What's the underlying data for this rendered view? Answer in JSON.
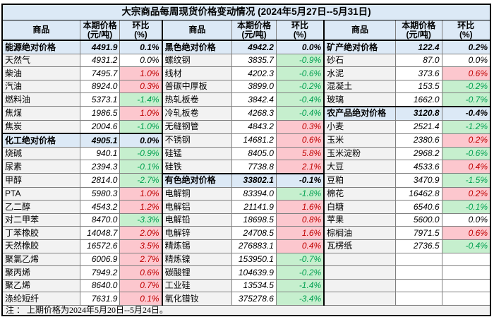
{
  "title": "大宗商品每周现货价格变动情况 (2024年5月27日--5月31日)",
  "note": "注 ： 上期价格为2024年5月20日--5月24日。",
  "header": {
    "commodity": "商品",
    "price_l1": "本期价格",
    "price_l2": "(元/吨)",
    "pct_l1": "环比",
    "pct_l2": "(%)"
  },
  "colors": {
    "header_bg": "#DCE9F6",
    "aggregate_bg": "#DCE9F6",
    "name_cell_bg": "#F2F2F2",
    "increase_bg": "#FCC7CE",
    "increase_text": "#C00000",
    "decrease_bg": "#C6EFCE",
    "decrease_text": "#00A050",
    "grid_line": "#808080",
    "outer_border": "#000000"
  },
  "groups": [
    {
      "rows": [
        {
          "name": "能源绝对价格",
          "price": "4491.9",
          "pct": "0.1%",
          "trend": "agg"
        },
        {
          "name": "天然气",
          "price": "4931.2",
          "pct": "0.0%",
          "trend": "flat"
        },
        {
          "name": "柴油",
          "price": "7495.7",
          "pct": "1.0%",
          "trend": "up"
        },
        {
          "name": "汽油",
          "price": "8924.0",
          "pct": "0.3%",
          "trend": "up"
        },
        {
          "name": "燃料油",
          "price": "5373.1",
          "pct": "-1.4%",
          "trend": "down"
        },
        {
          "name": "焦煤",
          "price": "1986.5",
          "pct": "1.0%",
          "trend": "up"
        },
        {
          "name": "焦炭",
          "price": "2004.6",
          "pct": "-1.0%",
          "trend": "down"
        },
        {
          "name": "化工绝对价格",
          "price": "4905.1",
          "pct": "0.0%",
          "trend": "agg"
        },
        {
          "name": "烧碱",
          "price": "940.1",
          "pct": "-0.9%",
          "trend": "down"
        },
        {
          "name": "尿素",
          "price": "2394.3",
          "pct": "-0.1%",
          "trend": "down"
        },
        {
          "name": "甲醇",
          "price": "2814.0",
          "pct": "-2.7%",
          "trend": "down"
        },
        {
          "name": "PTA",
          "price": "5980.3",
          "pct": "1.0%",
          "trend": "up"
        },
        {
          "name": "乙二醇",
          "price": "4543.2",
          "pct": "1.2%",
          "trend": "up"
        },
        {
          "name": "对二甲苯",
          "price": "8470.0",
          "pct": "-3.3%",
          "trend": "down"
        },
        {
          "name": "丁苯橡胶",
          "price": "14048.7",
          "pct": "2.0%",
          "trend": "up"
        },
        {
          "name": "天然橡胶",
          "price": "16572.6",
          "pct": "3.5%",
          "trend": "up"
        },
        {
          "name": "聚氯乙烯",
          "price": "6006.9",
          "pct": "2.7%",
          "trend": "up"
        },
        {
          "name": "聚丙烯",
          "price": "7949.2",
          "pct": "0.6%",
          "trend": "up"
        },
        {
          "name": "聚乙烯",
          "price": "8640.0",
          "pct": "0.7%",
          "trend": "up"
        },
        {
          "name": "涤纶短纤",
          "price": "7631.9",
          "pct": "0.1%",
          "trend": "up"
        }
      ]
    },
    {
      "rows": [
        {
          "name": "黑色绝对价格",
          "price": "4942.2",
          "pct": "0.0%",
          "trend": "agg"
        },
        {
          "name": "螺纹钢",
          "price": "3835.7",
          "pct": "-0.9%",
          "trend": "down"
        },
        {
          "name": "线材",
          "price": "4202.3",
          "pct": "-0.6%",
          "trend": "down"
        },
        {
          "name": "普碳中厚板",
          "price": "3899.0",
          "pct": "-0.2%",
          "trend": "down"
        },
        {
          "name": "热轧板卷",
          "price": "3842.4",
          "pct": "-0.4%",
          "trend": "down"
        },
        {
          "name": "冷轧板卷",
          "price": "4268.3",
          "pct": "-0.4%",
          "trend": "down"
        },
        {
          "name": "无缝钢管",
          "price": "4843.2",
          "pct": "0.3%",
          "trend": "up"
        },
        {
          "name": "不锈钢",
          "price": "14681.2",
          "pct": "0.6%",
          "trend": "up"
        },
        {
          "name": "硅锰",
          "price": "8405.0",
          "pct": "5.8%",
          "trend": "up"
        },
        {
          "name": "硅铁",
          "price": "7738.8",
          "pct": "2.1%",
          "trend": "up"
        },
        {
          "name": "有色绝对价格",
          "price": "33802.1",
          "pct": "-0.1%",
          "trend": "agg"
        },
        {
          "name": "电解铜",
          "price": "83394.0",
          "pct": "-1.8%",
          "trend": "down"
        },
        {
          "name": "电解铝",
          "price": "21141.9",
          "pct": "1.6%",
          "trend": "up"
        },
        {
          "name": "电解铅",
          "price": "18698.5",
          "pct": "0.8%",
          "trend": "up"
        },
        {
          "name": "电解锌",
          "price": "24708.5",
          "pct": "1.6%",
          "trend": "up"
        },
        {
          "name": "精炼锡",
          "price": "276883.1",
          "pct": "0.4%",
          "trend": "up"
        },
        {
          "name": "精炼镍",
          "price": "153950.1",
          "pct": "-0.7%",
          "trend": "down"
        },
        {
          "name": "碳酸锂",
          "price": "104639.9",
          "pct": "-0.2%",
          "trend": "down"
        },
        {
          "name": "工业硅",
          "price": "13534.5",
          "pct": "-1.4%",
          "trend": "down"
        },
        {
          "name": "氧化镨钕",
          "price": "375278.6",
          "pct": "-3.4%",
          "trend": "down"
        }
      ]
    },
    {
      "rows": [
        {
          "name": "矿产绝对价格",
          "price": "122.4",
          "pct": "0.2%",
          "trend": "agg"
        },
        {
          "name": "砂石",
          "price": "87.0",
          "pct": "0.0%",
          "trend": "flat"
        },
        {
          "name": "水泥",
          "price": "373.6",
          "pct": "0.6%",
          "trend": "up"
        },
        {
          "name": "混凝土",
          "price": "153.5",
          "pct": "-0.2%",
          "trend": "down"
        },
        {
          "name": "玻璃",
          "price": "1662.0",
          "pct": "-0.7%",
          "trend": "down"
        },
        {
          "name": "农产品绝对价格",
          "price": "3120.8",
          "pct": "-0.4%",
          "trend": "agg"
        },
        {
          "name": "小麦",
          "price": "2521.4",
          "pct": "-1.2%",
          "trend": "down"
        },
        {
          "name": "玉米",
          "price": "2380.6",
          "pct": "0.2%",
          "trend": "up"
        },
        {
          "name": "玉米淀粉",
          "price": "2968.2",
          "pct": "-0.6%",
          "trend": "down"
        },
        {
          "name": "大豆",
          "price": "4533.6",
          "pct": "0.4%",
          "trend": "up"
        },
        {
          "name": "豆粕",
          "price": "3470.9",
          "pct": "-1.5%",
          "trend": "down"
        },
        {
          "name": "棉花",
          "price": "16462.8",
          "pct": "0.2%",
          "trend": "up"
        },
        {
          "name": "白糖",
          "price": "6540.6",
          "pct": "-0.1%",
          "trend": "down"
        },
        {
          "name": "苹果",
          "price": "5600.0",
          "pct": "0.0%",
          "trend": "flat"
        },
        {
          "name": "棕榈油",
          "price": "7971.5",
          "pct": "0.6%",
          "trend": "up"
        },
        {
          "name": "瓦楞纸",
          "price": "2736.5",
          "pct": "-0.4%",
          "trend": "down"
        },
        {
          "name": "",
          "price": "",
          "pct": "",
          "trend": "empty"
        },
        {
          "name": "",
          "price": "",
          "pct": "",
          "trend": "empty"
        },
        {
          "name": "",
          "price": "",
          "pct": "",
          "trend": "empty"
        },
        {
          "name": "",
          "price": "",
          "pct": "",
          "trend": "empty"
        }
      ]
    }
  ]
}
